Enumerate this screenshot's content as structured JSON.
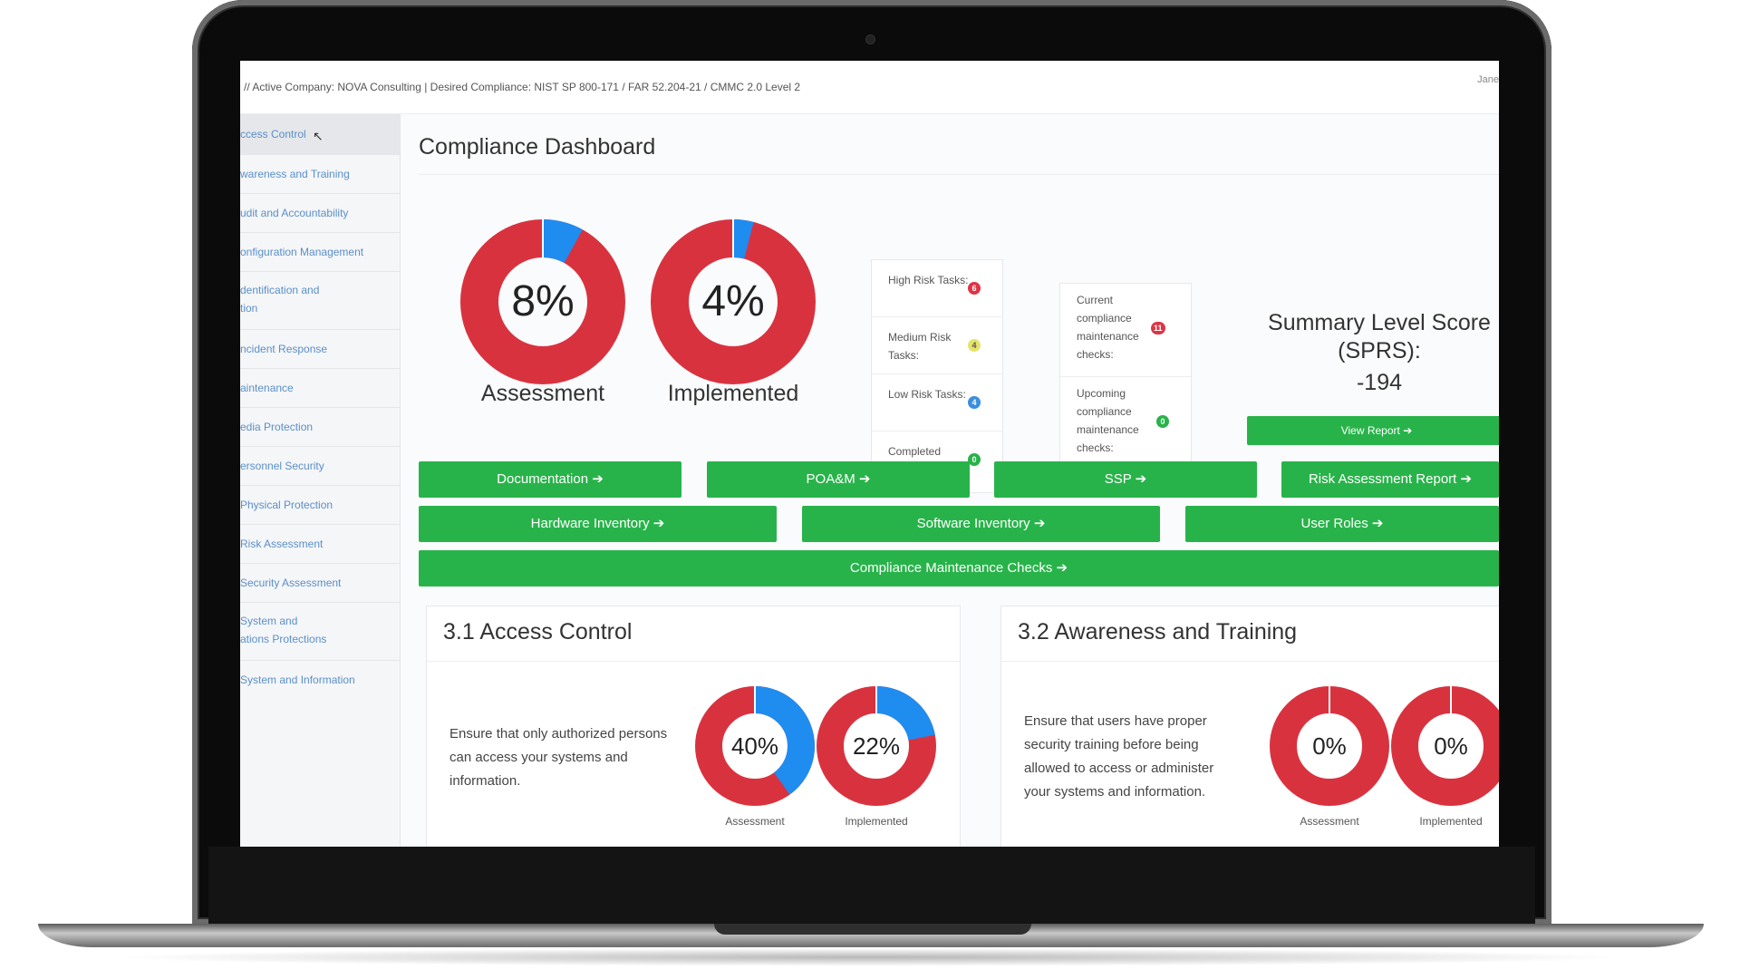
{
  "topbar": {
    "breadcrumb": "// Active Company: NOVA Consulting | Desired Compliance: NIST SP 800-171 / FAR 52.204-21 / CMMC 2.0 Level 2",
    "user": "Jane"
  },
  "sidebar": {
    "items": [
      {
        "label": "ccess Control",
        "label2": ""
      },
      {
        "label": "wareness and Training",
        "label2": ""
      },
      {
        "label": "udit and Accountability",
        "label2": ""
      },
      {
        "label": "onfiguration Management",
        "label2": ""
      },
      {
        "label": "dentification and",
        "label2": "tion"
      },
      {
        "label": "ncident Response",
        "label2": ""
      },
      {
        "label": "aintenance",
        "label2": ""
      },
      {
        "label": "edia Protection",
        "label2": ""
      },
      {
        "label": "ersonnel Security",
        "label2": ""
      },
      {
        "label": "Physical Protection",
        "label2": ""
      },
      {
        "label": "Risk Assessment",
        "label2": ""
      },
      {
        "label": "Security Assessment",
        "label2": ""
      },
      {
        "label": "System and",
        "label2": "ations Protections"
      },
      {
        "label": "System and Information",
        "label2": ""
      }
    ]
  },
  "main": {
    "title": "Compliance Dashboard",
    "donuts": [
      {
        "pct_label": "8%",
        "value": 0.08,
        "label": "Assessment"
      },
      {
        "pct_label": "4%",
        "value": 0.04,
        "label": "Implemented"
      }
    ],
    "tasks": [
      {
        "label": "High Risk Tasks:",
        "count": "6",
        "color": "#dc3545"
      },
      {
        "label": "Medium Risk Tasks:",
        "count": "4",
        "color": "#e6e36a"
      },
      {
        "label": "Low Risk Tasks:",
        "count": "4",
        "color": "#3b8ede"
      },
      {
        "label": "Completed Tasks:",
        "count": "0",
        "color": "#28b34a"
      }
    ],
    "maintenance": [
      {
        "label": "Current compliance maintenance checks:",
        "count": "11",
        "color": "#dc3545"
      },
      {
        "label": "Upcoming compliance maintenance checks:",
        "count": "0",
        "color": "#28b34a"
      }
    ],
    "sprs": {
      "title": "Summary Level Score (SPRS):",
      "score": "-194",
      "button": "View Report ➔"
    },
    "buttons_row1": [
      "Documentation ➔",
      "POA&M ➔",
      "SSP ➔",
      "Risk Assessment Report ➔"
    ],
    "buttons_row2": [
      "Hardware Inventory ➔",
      "Software Inventory ➔",
      "User Roles ➔"
    ],
    "button_wide": "Compliance Maintenance Checks ➔",
    "sections": [
      {
        "title": "3.1 Access Control",
        "desc_lines": [
          "Ensure that only authorized persons",
          "can access your systems and",
          "information."
        ],
        "donuts": [
          {
            "pct_label": "40%",
            "value": 0.4,
            "label": "Assessment"
          },
          {
            "pct_label": "22%",
            "value": 0.22,
            "label": "Implemented"
          }
        ]
      },
      {
        "title": "3.2 Awareness and Training",
        "desc_lines": [
          "Ensure that users have proper",
          "security training before being",
          "allowed to access or administer",
          "your systems and information."
        ],
        "donuts": [
          {
            "pct_label": "0%",
            "value": 0.0,
            "label": "Assessment"
          },
          {
            "pct_label": "0%",
            "value": 0.0,
            "label": "Implemented"
          }
        ]
      }
    ],
    "colors": {
      "done": "#1f8cf0",
      "remaining": "#d9323f",
      "button": "#28b34a"
    }
  }
}
